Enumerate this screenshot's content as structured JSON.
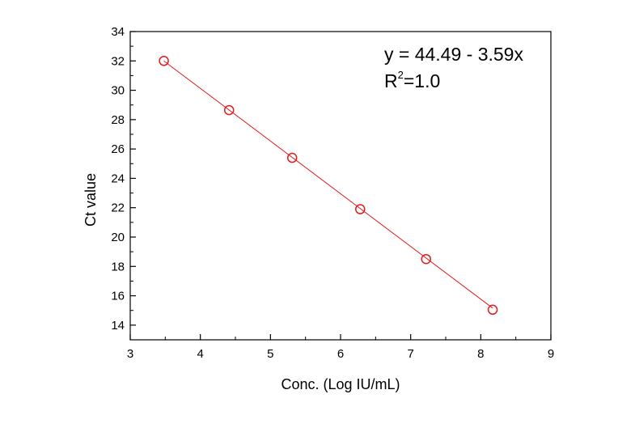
{
  "chart_data": {
    "type": "scatter",
    "title": "",
    "xlabel": "Conc. (Log IU/mL)",
    "ylabel": "Ct value",
    "xlim": [
      3,
      9
    ],
    "ylim": [
      13,
      34
    ],
    "xticks": [
      3,
      4,
      5,
      6,
      7,
      8,
      9
    ],
    "yticks": [
      14,
      16,
      18,
      20,
      22,
      24,
      26,
      28,
      30,
      32,
      34
    ],
    "grid": false,
    "legend": "none",
    "series": [
      {
        "marker": "open-circle",
        "color": "#e41a1c",
        "points": [
          {
            "x": 3.48,
            "y": 32.0
          },
          {
            "x": 4.41,
            "y": 28.65
          },
          {
            "x": 5.31,
            "y": 25.4
          },
          {
            "x": 6.28,
            "y": 21.9
          },
          {
            "x": 7.22,
            "y": 18.5
          },
          {
            "x": 8.17,
            "y": 15.05
          }
        ]
      }
    ],
    "fit_line": {
      "intercept": 44.49,
      "slope": -3.59,
      "color": "#e41a1c"
    },
    "annotations": {
      "equation": "y = 44.49 - 3.59x",
      "r2_prefix": "R",
      "r2_superscript": "2",
      "r2_suffix": "=1.0"
    }
  }
}
